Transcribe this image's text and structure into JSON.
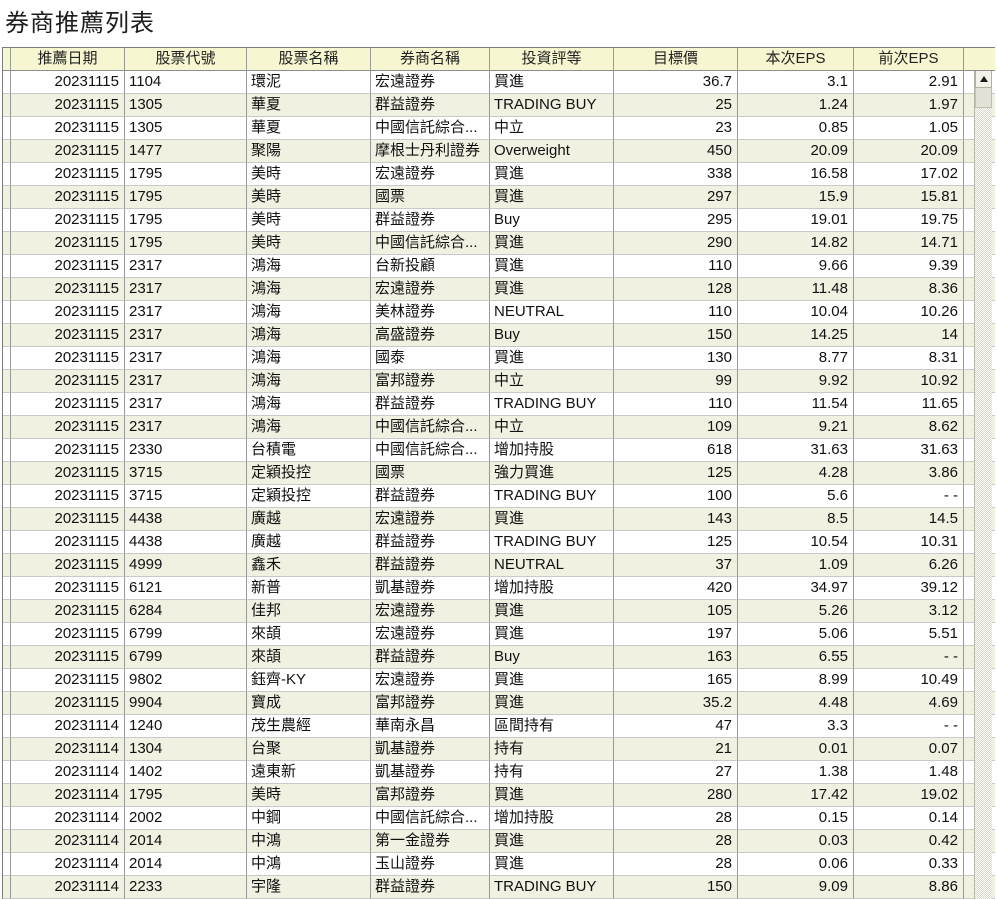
{
  "page_title": "券商推薦列表",
  "colors": {
    "header_bg": "#f6f6d0",
    "stripe_bg": "#f1f1e2",
    "grid_line": "#989898",
    "row_line": "#c9c9c9"
  },
  "scrollbar": {
    "up_icon": "scroll-up-arrow"
  },
  "table": {
    "headers": [
      "推薦日期",
      "股票代號",
      "股票名稱",
      "券商名稱",
      "投資評等",
      "目標價",
      "本次EPS",
      "前次EPS"
    ],
    "rows": [
      [
        "20231115",
        "1104",
        "環泥",
        "宏遠證券",
        "買進",
        "36.7",
        "3.1",
        "2.91"
      ],
      [
        "20231115",
        "1305",
        "華夏",
        "群益證券",
        "TRADING BUY",
        "25",
        "1.24",
        "1.97"
      ],
      [
        "20231115",
        "1305",
        "華夏",
        "中國信託綜合...",
        "中立",
        "23",
        "0.85",
        "1.05"
      ],
      [
        "20231115",
        "1477",
        "聚陽",
        "摩根士丹利證券",
        "Overweight",
        "450",
        "20.09",
        "20.09"
      ],
      [
        "20231115",
        "1795",
        "美時",
        "宏遠證券",
        "買進",
        "338",
        "16.58",
        "17.02"
      ],
      [
        "20231115",
        "1795",
        "美時",
        "國票",
        "買進",
        "297",
        "15.9",
        "15.81"
      ],
      [
        "20231115",
        "1795",
        "美時",
        "群益證券",
        "Buy",
        "295",
        "19.01",
        "19.75"
      ],
      [
        "20231115",
        "1795",
        "美時",
        "中國信託綜合...",
        "買進",
        "290",
        "14.82",
        "14.71"
      ],
      [
        "20231115",
        "2317",
        "鴻海",
        "台新投顧",
        "買進",
        "110",
        "9.66",
        "9.39"
      ],
      [
        "20231115",
        "2317",
        "鴻海",
        "宏遠證券",
        "買進",
        "128",
        "11.48",
        "8.36"
      ],
      [
        "20231115",
        "2317",
        "鴻海",
        "美林證券",
        "NEUTRAL",
        "110",
        "10.04",
        "10.26"
      ],
      [
        "20231115",
        "2317",
        "鴻海",
        "高盛證券",
        "Buy",
        "150",
        "14.25",
        "14"
      ],
      [
        "20231115",
        "2317",
        "鴻海",
        "國泰",
        "買進",
        "130",
        "8.77",
        "8.31"
      ],
      [
        "20231115",
        "2317",
        "鴻海",
        "富邦證券",
        "中立",
        "99",
        "9.92",
        "10.92"
      ],
      [
        "20231115",
        "2317",
        "鴻海",
        "群益證券",
        "TRADING BUY",
        "110",
        "11.54",
        "11.65"
      ],
      [
        "20231115",
        "2317",
        "鴻海",
        "中國信託綜合...",
        "中立",
        "109",
        "9.21",
        "8.62"
      ],
      [
        "20231115",
        "2330",
        "台積電",
        "中國信託綜合...",
        "增加持股",
        "618",
        "31.63",
        "31.63"
      ],
      [
        "20231115",
        "3715",
        "定穎投控",
        "國票",
        "強力買進",
        "125",
        "4.28",
        "3.86"
      ],
      [
        "20231115",
        "3715",
        "定穎投控",
        "群益證券",
        "TRADING BUY",
        "100",
        "5.6",
        "- -"
      ],
      [
        "20231115",
        "4438",
        "廣越",
        "宏遠證券",
        "買進",
        "143",
        "8.5",
        "14.5"
      ],
      [
        "20231115",
        "4438",
        "廣越",
        "群益證券",
        "TRADING BUY",
        "125",
        "10.54",
        "10.31"
      ],
      [
        "20231115",
        "4999",
        "鑫禾",
        "群益證券",
        "NEUTRAL",
        "37",
        "1.09",
        "6.26"
      ],
      [
        "20231115",
        "6121",
        "新普",
        "凱基證券",
        "增加持股",
        "420",
        "34.97",
        "39.12"
      ],
      [
        "20231115",
        "6284",
        "佳邦",
        "宏遠證券",
        "買進",
        "105",
        "5.26",
        "3.12"
      ],
      [
        "20231115",
        "6799",
        "來頡",
        "宏遠證券",
        "買進",
        "197",
        "5.06",
        "5.51"
      ],
      [
        "20231115",
        "6799",
        "來頡",
        "群益證券",
        "Buy",
        "163",
        "6.55",
        "- -"
      ],
      [
        "20231115",
        "9802",
        "鈺齊-KY",
        "宏遠證券",
        "買進",
        "165",
        "8.99",
        "10.49"
      ],
      [
        "20231115",
        "9904",
        "寶成",
        "富邦證券",
        "買進",
        "35.2",
        "4.48",
        "4.69"
      ],
      [
        "20231114",
        "1240",
        "茂生農經",
        "華南永昌",
        "區間持有",
        "47",
        "3.3",
        "- -"
      ],
      [
        "20231114",
        "1304",
        "台聚",
        "凱基證券",
        "持有",
        "21",
        "0.01",
        "0.07"
      ],
      [
        "20231114",
        "1402",
        "遠東新",
        "凱基證券",
        "持有",
        "27",
        "1.38",
        "1.48"
      ],
      [
        "20231114",
        "1795",
        "美時",
        "富邦證券",
        "買進",
        "280",
        "17.42",
        "19.02"
      ],
      [
        "20231114",
        "2002",
        "中鋼",
        "中國信託綜合...",
        "增加持股",
        "28",
        "0.15",
        "0.14"
      ],
      [
        "20231114",
        "2014",
        "中鴻",
        "第一金證券",
        "買進",
        "28",
        "0.03",
        "0.42"
      ],
      [
        "20231114",
        "2014",
        "中鴻",
        "玉山證券",
        "買進",
        "28",
        "0.06",
        "0.33"
      ],
      [
        "20231114",
        "2233",
        "宇隆",
        "群益證券",
        "TRADING BUY",
        "150",
        "9.09",
        "8.86"
      ]
    ]
  }
}
